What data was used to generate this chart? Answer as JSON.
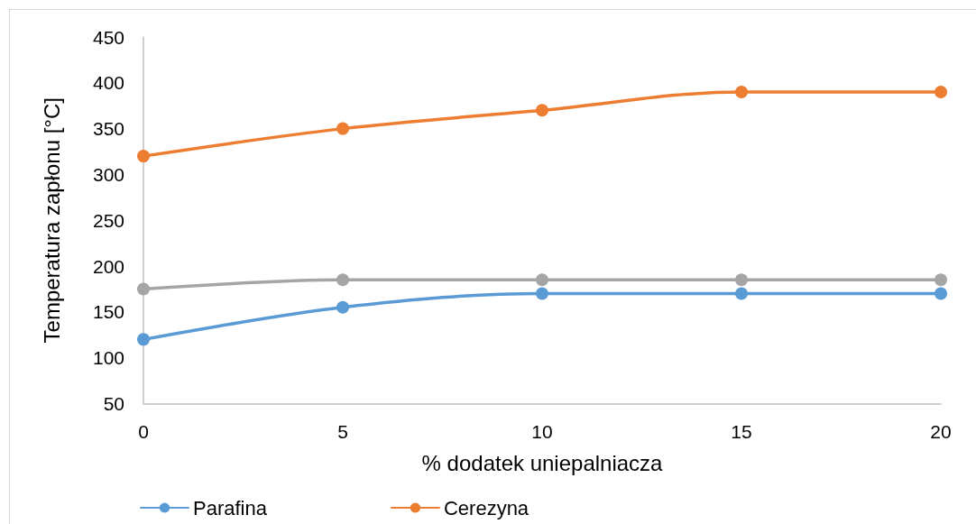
{
  "chart_data": {
    "type": "line",
    "xlabel": "% dodatek uniepalniacza",
    "ylabel": "Temperatura zapłonu [°C]",
    "x": [
      0,
      5,
      10,
      15,
      20
    ],
    "series": [
      {
        "name": "Parafina",
        "color": "#5b9bd5",
        "values": [
          120,
          155,
          170,
          170,
          170
        ]
      },
      {
        "name": "Cerezyna",
        "color": "#ed7d31",
        "values": [
          320,
          350,
          370,
          390,
          390
        ]
      },
      {
        "color": "#a5a5a5",
        "values": [
          175,
          185,
          185,
          185,
          185
        ]
      }
    ],
    "xlim": [
      0,
      20
    ],
    "xticks": [
      0,
      5,
      10,
      15,
      20
    ],
    "ylim": [
      50,
      450
    ],
    "yticks": [
      50,
      100,
      150,
      200,
      250,
      300,
      350,
      400,
      450
    ],
    "grid": false,
    "legend": "bottom",
    "marker": "circle",
    "line_style": "solid"
  }
}
